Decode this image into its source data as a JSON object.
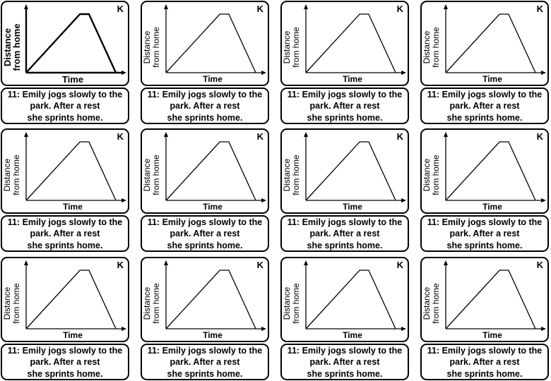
{
  "sheet": {
    "cards": [
      {
        "letter": "K",
        "ylabel_line1": "Distance",
        "ylabel_line2": "from home",
        "xlabel": "Time",
        "caption_line1": "11: Emily jogs slowly to the",
        "caption_line2": "park. After a rest",
        "caption_line3": "she sprints home."
      },
      {
        "letter": "K",
        "ylabel_line1": "Distance",
        "ylabel_line2": "from home",
        "xlabel": "Time",
        "caption_line1": "11: Emily jogs slowly to the",
        "caption_line2": "park. After a rest",
        "caption_line3": "she sprints home."
      },
      {
        "letter": "K",
        "ylabel_line1": "Distance",
        "ylabel_line2": "from home",
        "xlabel": "Time",
        "caption_line1": "11: Emily jogs slowly to the",
        "caption_line2": "park. After a rest",
        "caption_line3": "she sprints home."
      },
      {
        "letter": "K",
        "ylabel_line1": "Distance",
        "ylabel_line2": "from home",
        "xlabel": "Time",
        "caption_line1": "11: Emily jogs slowly to the",
        "caption_line2": "park. After a rest",
        "caption_line3": "she sprints home."
      },
      {
        "letter": "K",
        "ylabel_line1": "Distance",
        "ylabel_line2": "from home",
        "xlabel": "Time",
        "caption_line1": "11: Emily jogs slowly to the",
        "caption_line2": "park. After a rest",
        "caption_line3": "she sprints home."
      },
      {
        "letter": "K",
        "ylabel_line1": "Distance",
        "ylabel_line2": "from home",
        "xlabel": "Time",
        "caption_line1": "11: Emily jogs slowly to the",
        "caption_line2": "park. After a rest",
        "caption_line3": "she sprints home."
      },
      {
        "letter": "K",
        "ylabel_line1": "Distance",
        "ylabel_line2": "from home",
        "xlabel": "Time",
        "caption_line1": "11: Emily jogs slowly to the",
        "caption_line2": "park. After a rest",
        "caption_line3": "she sprints home."
      },
      {
        "letter": "K",
        "ylabel_line1": "Distance",
        "ylabel_line2": "from home",
        "xlabel": "Time",
        "caption_line1": "11: Emily jogs slowly to the",
        "caption_line2": "park. After a rest",
        "caption_line3": "she sprints home."
      },
      {
        "letter": "K",
        "ylabel_line1": "Distance",
        "ylabel_line2": "from home",
        "xlabel": "Time",
        "caption_line1": "11: Emily jogs slowly to the",
        "caption_line2": "park. After a rest",
        "caption_line3": "she sprints home."
      },
      {
        "letter": "K",
        "ylabel_line1": "Distance",
        "ylabel_line2": "from home",
        "xlabel": "Time",
        "caption_line1": "11: Emily jogs slowly to the",
        "caption_line2": "park. After a rest",
        "caption_line3": "she sprints home."
      },
      {
        "letter": "K",
        "ylabel_line1": "Distance",
        "ylabel_line2": "from home",
        "xlabel": "Time",
        "caption_line1": "11: Emily jogs slowly to the",
        "caption_line2": "park. After a rest",
        "caption_line3": "she sprints home."
      },
      {
        "letter": "K",
        "ylabel_line1": "Distance",
        "ylabel_line2": "from home",
        "xlabel": "Time",
        "caption_line1": "11: Emily jogs slowly to the",
        "caption_line2": "park. After a rest",
        "caption_line3": "she sprints home."
      }
    ]
  },
  "graph_shape": {
    "description_points": [
      [
        0,
        0
      ],
      [
        0.6,
        1
      ],
      [
        0.7,
        1
      ],
      [
        1,
        0
      ]
    ]
  }
}
